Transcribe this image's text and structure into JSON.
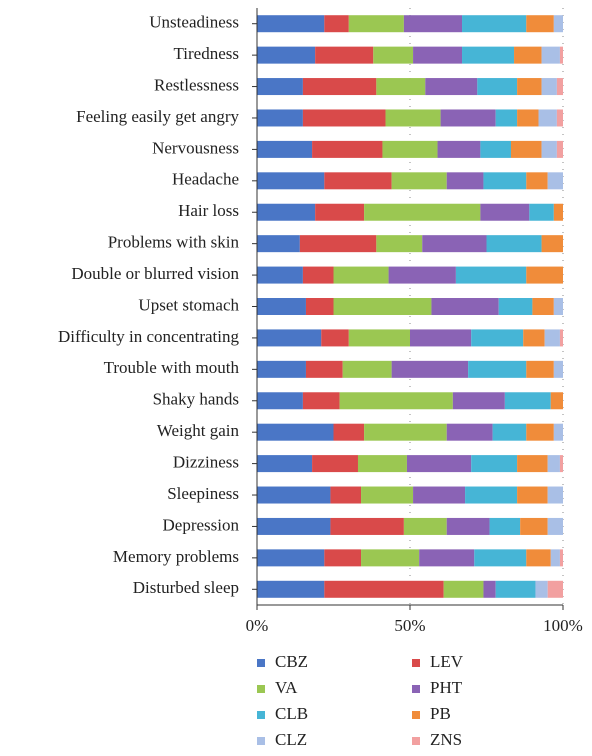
{
  "chart_data": {
    "type": "stacked_barh",
    "categories": [
      "Unsteadiness",
      "Tiredness",
      "Restlessness",
      "Feeling easily get angry",
      "Nervousness",
      "Headache",
      "Hair loss",
      "Problems with skin",
      "Double or blurred vision",
      "Upset stomach",
      "Difficulty in concentrating",
      "Trouble with mouth",
      "Shaky hands",
      "Weight gain",
      "Dizziness",
      "Sleepiness",
      "Depression",
      "Memory problems",
      "Disturbed sleep"
    ],
    "series": [
      {
        "name": "CBZ",
        "color": "#4a76c6",
        "values": [
          22,
          19,
          15,
          15,
          18,
          22,
          19,
          14,
          15,
          16,
          21,
          16,
          15,
          25,
          18,
          24,
          24,
          22,
          22
        ]
      },
      {
        "name": "LEV",
        "color": "#d94a4a",
        "values": [
          8,
          19,
          24,
          27,
          23,
          22,
          16,
          25,
          10,
          9,
          9,
          12,
          12,
          10,
          15,
          10,
          24,
          12,
          39
        ]
      },
      {
        "name": "VA",
        "color": "#9bc752",
        "values": [
          18,
          13,
          16,
          18,
          18,
          18,
          38,
          15,
          18,
          32,
          20,
          16,
          37,
          27,
          16,
          17,
          14,
          19,
          13
        ]
      },
      {
        "name": "PHT",
        "color": "#8a63b5",
        "values": [
          19,
          16,
          17,
          18,
          14,
          12,
          16,
          21,
          22,
          22,
          20,
          25,
          17,
          15,
          21,
          17,
          14,
          18,
          4
        ]
      },
      {
        "name": "CLB",
        "color": "#46b5d6",
        "values": [
          21,
          17,
          13,
          7,
          10,
          14,
          8,
          18,
          23,
          11,
          17,
          19,
          15,
          11,
          15,
          17,
          10,
          17,
          13
        ]
      },
      {
        "name": "PB",
        "color": "#f08c3a",
        "values": [
          9,
          9,
          8,
          7,
          10,
          7,
          3,
          7,
          12,
          7,
          7,
          9,
          4,
          9,
          10,
          10,
          9,
          8,
          0
        ]
      },
      {
        "name": "CLZ",
        "color": "#a9bfe6",
        "values": [
          3,
          6,
          5,
          6,
          5,
          5,
          0,
          0,
          0,
          3,
          5,
          3,
          0,
          3,
          4,
          5,
          5,
          3,
          4
        ]
      },
      {
        "name": "ZNS",
        "color": "#f2a0a0",
        "values": [
          0,
          1,
          2,
          2,
          2,
          0,
          0,
          0,
          0,
          0,
          1,
          0,
          0,
          0,
          1,
          0,
          0,
          1,
          5
        ]
      }
    ],
    "xlim": [
      0,
      100
    ],
    "xticks": [
      {
        "value": 0,
        "label": "0%"
      },
      {
        "value": 50,
        "label": "50%"
      },
      {
        "value": 100,
        "label": "100%"
      }
    ],
    "grid": true
  }
}
